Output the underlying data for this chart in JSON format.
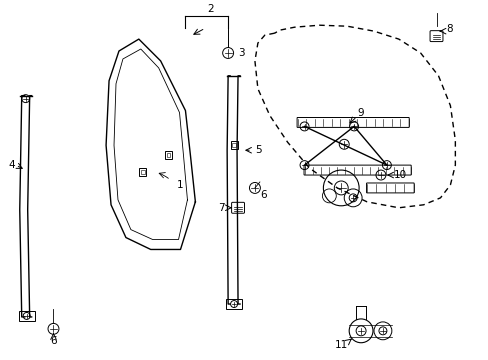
{
  "background_color": "#ffffff",
  "line_color": "#000000",
  "figsize": [
    4.89,
    3.6
  ],
  "dpi": 100,
  "window_frame": {
    "outer_x": [
      1.5,
      1.3,
      1.15,
      1.1,
      1.18,
      1.5,
      1.8,
      1.95,
      1.95
    ],
    "outer_y": [
      3.22,
      3.22,
      2.9,
      2.2,
      1.55,
      1.2,
      1.2,
      1.55,
      2.1
    ],
    "inner_x": [
      1.55,
      1.38,
      1.24,
      1.2,
      1.27,
      1.55,
      1.82,
      1.87
    ],
    "inner_y": [
      3.15,
      3.15,
      2.85,
      2.18,
      1.6,
      1.3,
      1.3,
      1.65
    ]
  },
  "door_shape": {
    "x": [
      2.75,
      2.65,
      2.58,
      2.55,
      2.58,
      2.7,
      2.88,
      3.1,
      3.38,
      3.68,
      4.0,
      4.25,
      4.42,
      4.52,
      4.57,
      4.57,
      4.52,
      4.4,
      4.22,
      4.0,
      3.75,
      3.48,
      3.2,
      2.95,
      2.8,
      2.75
    ],
    "y": [
      3.28,
      3.26,
      3.18,
      3.0,
      2.72,
      2.45,
      2.18,
      1.92,
      1.72,
      1.58,
      1.52,
      1.55,
      1.62,
      1.75,
      1.95,
      2.2,
      2.55,
      2.85,
      3.08,
      3.22,
      3.3,
      3.35,
      3.36,
      3.34,
      3.31,
      3.28
    ]
  }
}
